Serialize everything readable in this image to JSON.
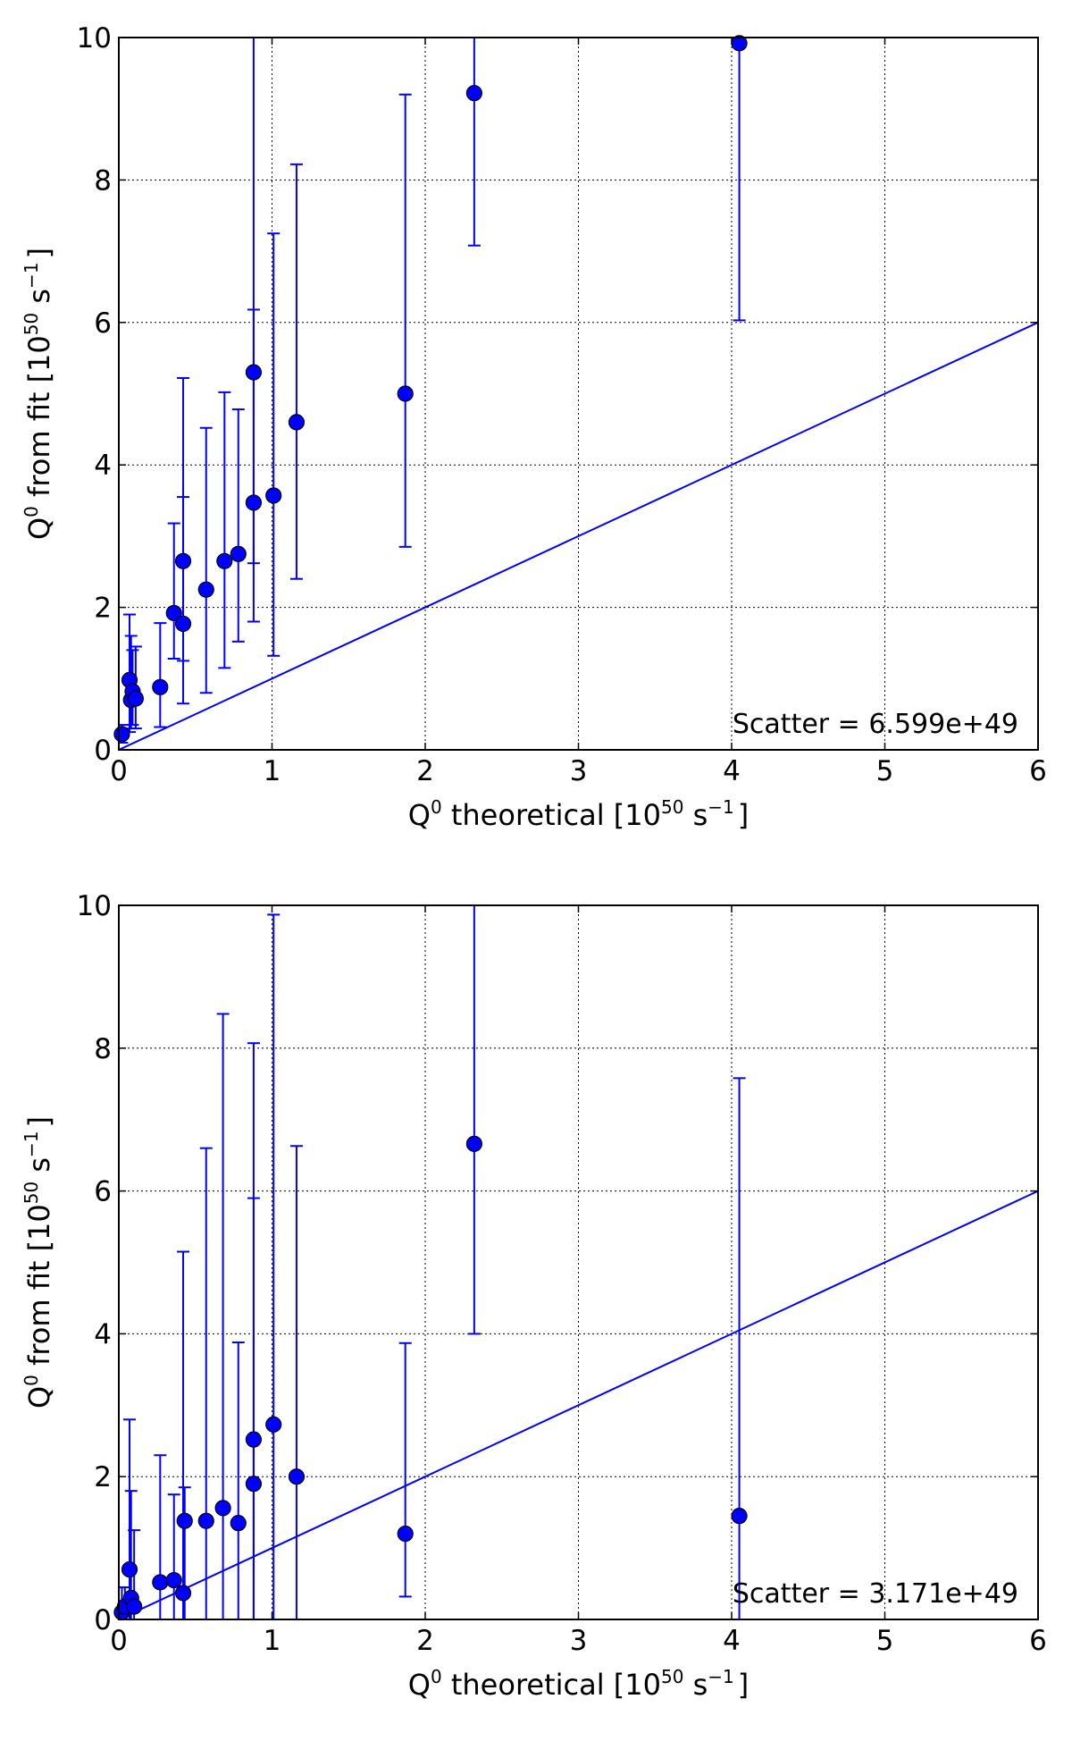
{
  "chart_data": [
    {
      "type": "scatter",
      "panel": "top",
      "xlabel_main": "Q",
      "xlabel_sup": "0",
      "xlabel_rest": "  theoretical [10",
      "xlabel_exp": "50",
      "xlabel_unit": " s",
      "xlabel_unit_sup": "−1",
      "xlabel_close": "]",
      "ylabel_main": "Q",
      "ylabel_sup": "0",
      "ylabel_rest": "  from fit [10",
      "ylabel_exp": "50",
      "ylabel_unit": " s",
      "ylabel_unit_sup": "−1",
      "ylabel_close": "]",
      "xlim": [
        0,
        6
      ],
      "ylim": [
        0,
        10
      ],
      "xticks": [
        "0",
        "1",
        "2",
        "3",
        "4",
        "5",
        "6"
      ],
      "yticks": [
        "0",
        "2",
        "4",
        "6",
        "8",
        "10"
      ],
      "grid": true,
      "annotation": "Scatter =  6.599e+49",
      "reference_line": {
        "x": [
          0,
          6
        ],
        "y": [
          0,
          6
        ]
      },
      "points": [
        {
          "x": 0.02,
          "y": 0.22,
          "lo": 0.1,
          "hi": 0.35
        },
        {
          "x": 0.07,
          "y": 0.98,
          "lo": 0.25,
          "hi": 1.9
        },
        {
          "x": 0.08,
          "y": 0.7,
          "lo": 0.3,
          "hi": 1.6
        },
        {
          "x": 0.09,
          "y": 0.82,
          "lo": 0.35,
          "hi": 1.4
        },
        {
          "x": 0.11,
          "y": 0.72,
          "lo": 0.3,
          "hi": 1.45
        },
        {
          "x": 0.27,
          "y": 0.88,
          "lo": 0.32,
          "hi": 1.78
        },
        {
          "x": 0.36,
          "y": 1.92,
          "lo": 1.28,
          "hi": 3.18
        },
        {
          "x": 0.42,
          "y": 2.65,
          "lo": 1.25,
          "hi": 3.55
        },
        {
          "x": 0.42,
          "y": 1.77,
          "lo": 0.65,
          "hi": 5.22
        },
        {
          "x": 0.57,
          "y": 2.25,
          "lo": 0.8,
          "hi": 4.52
        },
        {
          "x": 0.69,
          "y": 2.65,
          "lo": 1.15,
          "hi": 5.02
        },
        {
          "x": 0.78,
          "y": 2.75,
          "lo": 1.52,
          "hi": 4.78
        },
        {
          "x": 0.88,
          "y": 5.3,
          "lo": 2.62,
          "hi": 10.0
        },
        {
          "x": 0.88,
          "y": 3.47,
          "lo": 1.8,
          "hi": 6.18
        },
        {
          "x": 1.01,
          "y": 3.57,
          "lo": 1.32,
          "hi": 7.25
        },
        {
          "x": 1.16,
          "y": 4.6,
          "lo": 2.4,
          "hi": 8.22
        },
        {
          "x": 1.87,
          "y": 5.0,
          "lo": 2.85,
          "hi": 9.2
        },
        {
          "x": 2.32,
          "y": 9.22,
          "lo": 7.08,
          "hi": 10.0
        },
        {
          "x": 4.05,
          "y": 9.92,
          "lo": 6.03,
          "hi": 10.0
        }
      ]
    },
    {
      "type": "scatter",
      "panel": "bottom",
      "xlabel_main": "Q",
      "xlabel_sup": "0",
      "xlabel_rest": "  theoretical [10",
      "xlabel_exp": "50",
      "xlabel_unit": " s",
      "xlabel_unit_sup": "−1",
      "xlabel_close": "]",
      "ylabel_main": "Q",
      "ylabel_sup": "0",
      "ylabel_rest": "  from fit [10",
      "ylabel_exp": "50",
      "ylabel_unit": " s",
      "ylabel_unit_sup": "−1",
      "ylabel_close": "]",
      "xlim": [
        0,
        6
      ],
      "ylim": [
        0,
        10
      ],
      "xticks": [
        "0",
        "1",
        "2",
        "3",
        "4",
        "5",
        "6"
      ],
      "yticks": [
        "0",
        "2",
        "4",
        "6",
        "8",
        "10"
      ],
      "grid": true,
      "annotation": "Scatter =  3.171e+49",
      "reference_line": {
        "x": [
          0,
          6
        ],
        "y": [
          0,
          6
        ]
      },
      "points": [
        {
          "x": 0.02,
          "y": 0.1,
          "lo": 0.0,
          "hi": 0.45
        },
        {
          "x": 0.04,
          "y": 0.18,
          "lo": 0.0,
          "hi": 0.45
        },
        {
          "x": 0.07,
          "y": 0.7,
          "lo": 0.0,
          "hi": 2.8
        },
        {
          "x": 0.08,
          "y": 0.3,
          "lo": 0.0,
          "hi": 1.8
        },
        {
          "x": 0.1,
          "y": 0.18,
          "lo": 0.0,
          "hi": 1.25
        },
        {
          "x": 0.27,
          "y": 0.52,
          "lo": 0.0,
          "hi": 2.3
        },
        {
          "x": 0.36,
          "y": 0.55,
          "lo": 0.0,
          "hi": 1.75
        },
        {
          "x": 0.42,
          "y": 0.37,
          "lo": 0.0,
          "hi": 5.15
        },
        {
          "x": 0.43,
          "y": 1.38,
          "lo": 0.0,
          "hi": 1.85
        },
        {
          "x": 0.57,
          "y": 1.38,
          "lo": 0.0,
          "hi": 6.6
        },
        {
          "x": 0.68,
          "y": 1.56,
          "lo": 0.0,
          "hi": 8.48
        },
        {
          "x": 0.78,
          "y": 1.35,
          "lo": 0.0,
          "hi": 3.88
        },
        {
          "x": 0.88,
          "y": 2.52,
          "lo": 0.0,
          "hi": 8.07
        },
        {
          "x": 0.88,
          "y": 1.9,
          "lo": 0.0,
          "hi": 5.9
        },
        {
          "x": 1.01,
          "y": 2.73,
          "lo": 0.0,
          "hi": 9.87
        },
        {
          "x": 1.16,
          "y": 2.0,
          "lo": 0.0,
          "hi": 6.63
        },
        {
          "x": 1.87,
          "y": 1.2,
          "lo": 0.32,
          "hi": 3.87
        },
        {
          "x": 2.32,
          "y": 6.66,
          "lo": 4.0,
          "hi": 10.0
        },
        {
          "x": 4.05,
          "y": 1.45,
          "lo": 0.0,
          "hi": 7.58
        }
      ]
    }
  ]
}
